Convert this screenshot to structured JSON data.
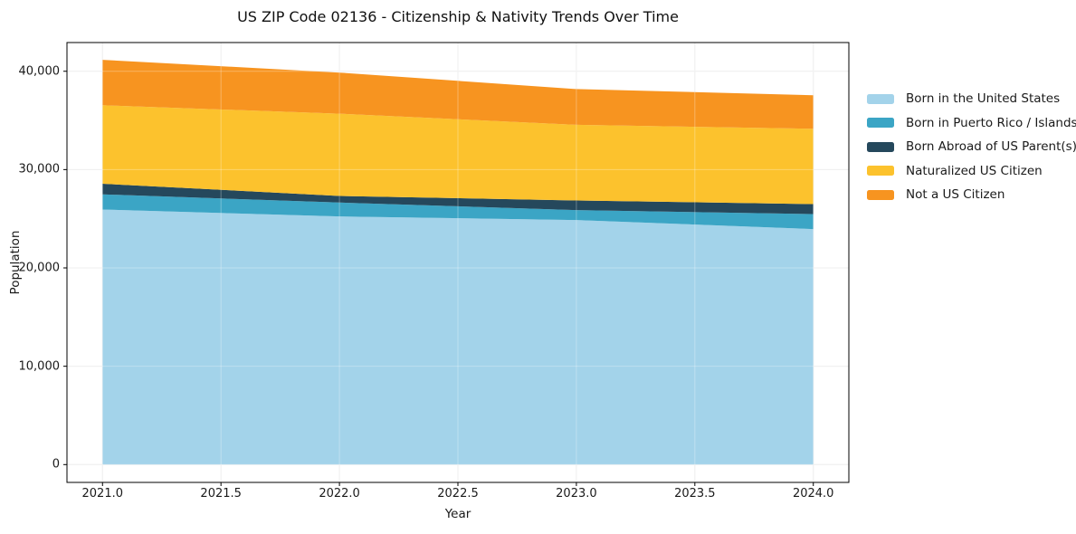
{
  "title": "US ZIP Code 02136 - Citizenship & Nativity Trends Over Time",
  "chart_data": {
    "type": "area",
    "stacked": true,
    "title": "US ZIP Code 02136 - Citizenship & Nativity Trends Over Time",
    "xlabel": "Year",
    "ylabel": "Population",
    "grid": true,
    "legend_position": "right-outside",
    "x": [
      2021,
      2022,
      2023,
      2024
    ],
    "series": [
      {
        "name": "Born in the United States",
        "color": "#a3d3ea",
        "values": [
          25940,
          25240,
          24870,
          23950
        ]
      },
      {
        "name": "Born in Puerto Rico / Islands",
        "color": "#3ba5c5",
        "values": [
          1540,
          1410,
          1010,
          1530
        ]
      },
      {
        "name": "Born Abroad of US Parent(s)",
        "color": "#25485c",
        "values": [
          1080,
          670,
          980,
          1010
        ]
      },
      {
        "name": "Naturalized US Citizen",
        "color": "#fcc22d",
        "values": [
          7980,
          8370,
          7690,
          7660
        ]
      },
      {
        "name": "Not a US Citizen",
        "color": "#f79420",
        "values": [
          4620,
          4170,
          3640,
          3410
        ]
      }
    ],
    "totals": [
      41160,
      39860,
      38190,
      37560
    ],
    "x_ticks": [
      "2021.0",
      "2021.5",
      "2022.0",
      "2022.5",
      "2023.0",
      "2023.5",
      "2024.0"
    ],
    "x_tick_values": [
      2021,
      2021.5,
      2022,
      2022.5,
      2023,
      2023.5,
      2024
    ],
    "y_ticks": [
      "0",
      "10,000",
      "20,000",
      "30,000",
      "40,000"
    ],
    "y_tick_values": [
      0,
      10000,
      20000,
      30000,
      40000
    ],
    "xlim": [
      2020.85,
      2024.15
    ],
    "ylim": [
      -1813,
      42920
    ],
    "colors": {
      "background": "#ffffff",
      "gridline": "#e8e8e8",
      "spine": "#000000",
      "text": "#1a1a1a"
    }
  }
}
